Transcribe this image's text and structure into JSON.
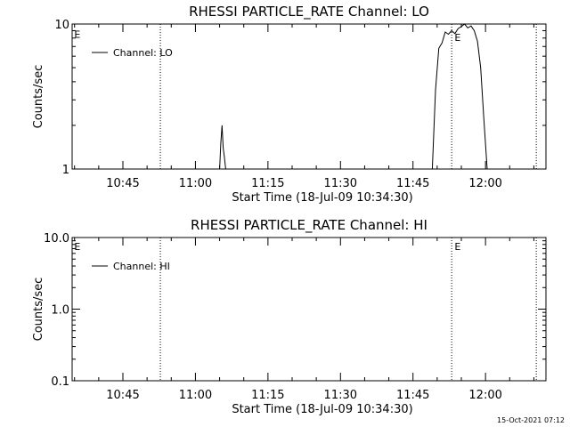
{
  "footer": {
    "date": "15-Oct-2021 07:12"
  },
  "chart_data": [
    {
      "type": "line",
      "title": "RHESSI PARTICLE_RATE Channel: LO",
      "xlabel": "Start Time (18-Jul-09 10:34:30)",
      "ylabel": "Counts/sec",
      "yscale": "log",
      "ylim": [
        1,
        10
      ],
      "xlim": [
        "10:34:30",
        "12:12:30"
      ],
      "xticks": [
        "10:45",
        "11:00",
        "11:15",
        "11:30",
        "11:45",
        "12:00"
      ],
      "yticks": [
        "1",
        "10"
      ],
      "legend": {
        "label": "Channel: LO",
        "position": "top-left"
      },
      "event_lines": [
        "10:52:45",
        "11:53:00",
        "12:10:30"
      ],
      "event_markers": [
        {
          "label": "E",
          "x": "10:34:50",
          "y": 8.6
        },
        {
          "label": "E",
          "x": "11:53:30",
          "y": 8.2
        }
      ],
      "series": [
        {
          "x": [
            "10:34:30",
            "11:05:00",
            "11:05:15",
            "11:05:30",
            "11:05:45",
            "11:06:00",
            "11:06:15",
            "11:06:30",
            "11:49:00",
            "11:49:40",
            "11:50:20",
            "11:51:00",
            "11:51:40",
            "11:52:20",
            "11:53:00",
            "11:53:40",
            "11:54:20",
            "11:55:00",
            "11:55:40",
            "11:56:20",
            "11:57:00",
            "11:57:40",
            "11:58:20",
            "11:59:00",
            "11:59:40",
            "12:00:20",
            "12:12:30"
          ],
          "values": [
            1,
            1,
            1.5,
            2.0,
            1.4,
            1.2,
            1,
            1,
            1,
            3.5,
            6.8,
            7.4,
            8.8,
            8.5,
            9.0,
            8.6,
            9.3,
            9.6,
            10.3,
            9.4,
            9.7,
            9.0,
            7.6,
            5.0,
            2.2,
            1,
            1
          ]
        }
      ]
    },
    {
      "type": "line",
      "title": "RHESSI PARTICLE_RATE Channel: HI",
      "xlabel": "Start Time (18-Jul-09 10:34:30)",
      "ylabel": "Counts/sec",
      "yscale": "log",
      "ylim": [
        0.1,
        10
      ],
      "xlim": [
        "10:34:30",
        "12:12:30"
      ],
      "xticks": [
        "10:45",
        "11:00",
        "11:15",
        "11:30",
        "11:45",
        "12:00"
      ],
      "yticks": [
        "0.1",
        "1.0",
        "10.0"
      ],
      "legend": {
        "label": "Channel: HI",
        "position": "top-left"
      },
      "event_lines": [
        "10:52:45",
        "11:53:00",
        "12:10:30"
      ],
      "event_markers": [
        {
          "label": "E",
          "x": "10:34:50",
          "y": 7.7
        },
        {
          "label": "E",
          "x": "11:53:30",
          "y": 7.7
        }
      ],
      "series": []
    }
  ]
}
